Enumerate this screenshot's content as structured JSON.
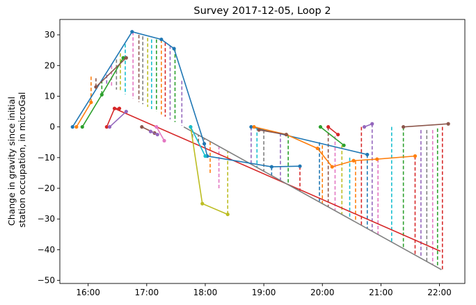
{
  "chart_data": {
    "type": "line",
    "title": "Survey 2017-12-05, Loop 2",
    "xlabel": "",
    "ylabel": [
      "Change in gravity since initial",
      "station occupation, in microGal"
    ],
    "x_unit": "time of day",
    "xlim": [
      "15:31",
      "22:26"
    ],
    "ylim": [
      -51,
      35
    ],
    "x_ticks": [
      "16:00",
      "17:00",
      "18:00",
      "19:00",
      "20:00",
      "21:00",
      "22:00"
    ],
    "y_ticks": [
      30,
      20,
      10,
      0,
      -10,
      -20,
      -30,
      -40,
      -50
    ],
    "y_tick_labels": [
      "30",
      "20",
      "10",
      "0",
      "−10",
      "−20",
      "−30",
      "−40",
      "−50"
    ],
    "grid": false,
    "legend": false,
    "colors": [
      "#1f77b4",
      "#ff7f0e",
      "#2ca02c",
      "#d62728",
      "#9467bd",
      "#8c564b",
      "#e377c2",
      "#7f7f7f",
      "#bcbd22",
      "#17becf"
    ],
    "drift_lines": [
      {
        "color": "#d62728",
        "points": [
          [
            "16:27",
            6
          ],
          [
            "22:01",
            -40.5
          ]
        ]
      },
      {
        "color": "#7f7f7f",
        "points": [
          [
            "17:38",
            0
          ],
          [
            "22:02",
            -46.5
          ]
        ]
      }
    ],
    "station_series": [
      {
        "color": "#1f77b4",
        "points": [
          [
            "15:44",
            0
          ],
          [
            "16:45",
            31
          ],
          [
            "17:15",
            28.5
          ],
          [
            "17:28",
            25.5
          ],
          [
            "17:59",
            -5.5
          ],
          [
            "18:02",
            -9.5
          ],
          [
            "19:08",
            -13
          ],
          [
            "19:37",
            -12.8
          ]
        ]
      },
      {
        "color": "#ff7f0e",
        "points": [
          [
            "15:48",
            0
          ],
          [
            "16:03",
            8
          ]
        ]
      },
      {
        "color": "#2ca02c",
        "points": [
          [
            "15:54",
            0
          ],
          [
            "16:14",
            10.5
          ],
          [
            "16:36",
            22.5
          ]
        ]
      },
      {
        "color": "#8c564b",
        "points": [
          [
            "16:08",
            13
          ],
          [
            "16:39",
            22.5
          ]
        ]
      },
      {
        "color": "#d62728",
        "points": [
          [
            "16:19",
            0
          ],
          [
            "16:27",
            6
          ],
          [
            "16:32",
            6
          ]
        ]
      },
      {
        "color": "#9467bd",
        "points": [
          [
            "16:22",
            0
          ],
          [
            "16:39",
            5
          ]
        ]
      },
      {
        "color": "#8c564b",
        "points": [
          [
            "16:55",
            0
          ],
          [
            "17:08",
            -2
          ]
        ]
      },
      {
        "color": "#9467bd",
        "points": [
          [
            "17:04",
            -1.5
          ],
          [
            "17:11",
            -2.5
          ]
        ]
      },
      {
        "color": "#e377c2",
        "points": [
          [
            "17:10",
            0
          ],
          [
            "17:18",
            -4.5
          ]
        ]
      },
      {
        "color": "#bcbd22",
        "points": [
          [
            "17:45",
            0
          ],
          [
            "17:57",
            -25
          ],
          [
            "18:23",
            -28.5
          ]
        ]
      },
      {
        "color": "#17becf",
        "points": [
          [
            "17:45",
            0
          ],
          [
            "18:00",
            -9.5
          ]
        ]
      },
      {
        "color": "#1f77b4",
        "points": [
          [
            "18:47",
            0
          ],
          [
            "20:46",
            -9
          ]
        ]
      },
      {
        "color": "#ff7f0e",
        "points": [
          [
            "18:50",
            0
          ],
          [
            "19:23",
            -2.5
          ],
          [
            "19:55",
            -7
          ],
          [
            "20:10",
            -13
          ],
          [
            "20:32",
            -11
          ],
          [
            "20:56",
            -10.5
          ],
          [
            "21:35",
            -9.5
          ]
        ]
      },
      {
        "color": "#8c564b",
        "points": [
          [
            "18:55",
            -1
          ],
          [
            "19:23",
            -2.5
          ]
        ]
      },
      {
        "color": "#2ca02c",
        "points": [
          [
            "19:58",
            0
          ],
          [
            "20:22",
            -6
          ]
        ]
      },
      {
        "color": "#d62728",
        "points": [
          [
            "20:06",
            0
          ],
          [
            "20:16",
            -2.5
          ]
        ]
      },
      {
        "color": "#9467bd",
        "points": [
          [
            "20:43",
            0
          ],
          [
            "20:51",
            1
          ]
        ]
      },
      {
        "color": "#8c564b",
        "points": [
          [
            "21:23",
            0
          ],
          [
            "22:09",
            1
          ]
        ]
      }
    ],
    "dashed_offsets": [
      {
        "x": "16:03",
        "y": 8,
        "color": "#ff7f0e"
      },
      {
        "x": "16:08",
        "y": 13,
        "color": "#8c564b"
      },
      {
        "x": "16:14",
        "y": 10.5,
        "color": "#2ca02c"
      },
      {
        "x": "16:19",
        "y": 17,
        "color": "#9467bd"
      },
      {
        "x": "16:24",
        "y": 20,
        "color": "#e377c2"
      },
      {
        "x": "16:29",
        "y": 22,
        "color": "#7f7f7f"
      },
      {
        "x": "16:33",
        "y": 24,
        "color": "#bcbd22"
      },
      {
        "x": "16:38",
        "y": 27,
        "color": "#17becf"
      },
      {
        "x": "16:46",
        "y": 31,
        "color": "#e377c2"
      },
      {
        "x": "16:52",
        "y": 30,
        "color": "#8c564b"
      },
      {
        "x": "16:56",
        "y": 29.5,
        "color": "#7f7f7f"
      },
      {
        "x": "17:01",
        "y": 29,
        "color": "#bcbd22"
      },
      {
        "x": "17:05",
        "y": 28.5,
        "color": "#17becf"
      },
      {
        "x": "17:10",
        "y": 28.5,
        "color": "#2ca02c"
      },
      {
        "x": "17:15",
        "y": 28.5,
        "color": "#ff7f0e"
      },
      {
        "x": "17:19",
        "y": 27.5,
        "color": "#d62728"
      },
      {
        "x": "17:24",
        "y": 26.5,
        "color": "#9467bd"
      },
      {
        "x": "17:29",
        "y": 25.5,
        "color": "#2ca02c"
      },
      {
        "x": "17:36",
        "y": 15,
        "color": "#9467bd"
      },
      {
        "x": "17:47",
        "y": -3.5,
        "color": "#7f7f7f"
      },
      {
        "x": "17:53",
        "y": -5,
        "color": "#8c564b"
      },
      {
        "x": "17:59",
        "y": -6,
        "color": "#8c564b"
      },
      {
        "x": "18:05",
        "y": -15,
        "color": "#ff7f0e"
      },
      {
        "x": "18:14",
        "y": -20,
        "color": "#e377c2"
      },
      {
        "x": "18:23",
        "y": -28.5,
        "color": "#bcbd22"
      },
      {
        "x": "18:47",
        "y": 0,
        "color": "#9467bd"
      },
      {
        "x": "18:53",
        "y": 0,
        "color": "#17becf"
      },
      {
        "x": "19:00",
        "y": -1,
        "color": "#7f7f7f"
      },
      {
        "x": "19:08",
        "y": -13,
        "color": "#1f77b4"
      },
      {
        "x": "19:17",
        "y": -2,
        "color": "#9467bd"
      },
      {
        "x": "19:25",
        "y": -2.5,
        "color": "#2ca02c"
      },
      {
        "x": "19:37",
        "y": -12.8,
        "color": "#d62728"
      },
      {
        "x": "19:57",
        "y": -5,
        "color": "#1f77b4"
      },
      {
        "x": "20:00",
        "y": -6,
        "color": "#ff7f0e"
      },
      {
        "x": "20:06",
        "y": 0,
        "color": "#8c564b"
      },
      {
        "x": "20:13",
        "y": -3,
        "color": "#e377c2"
      },
      {
        "x": "20:20",
        "y": -6,
        "color": "#bcbd22"
      },
      {
        "x": "20:28",
        "y": -10,
        "color": "#17becf"
      },
      {
        "x": "20:34",
        "y": -11,
        "color": "#ff7f0e"
      },
      {
        "x": "20:40",
        "y": 0,
        "color": "#d62728"
      },
      {
        "x": "20:46",
        "y": -9,
        "color": "#1f77b4"
      },
      {
        "x": "20:51",
        "y": 1,
        "color": "#9467bd"
      },
      {
        "x": "20:57",
        "y": -10.5,
        "color": "#e377c2"
      },
      {
        "x": "21:11",
        "y": 0,
        "color": "#17becf"
      },
      {
        "x": "21:23",
        "y": 0,
        "color": "#2ca02c"
      },
      {
        "x": "21:35",
        "y": -9.5,
        "color": "#d62728"
      },
      {
        "x": "21:41",
        "y": -1,
        "color": "#9467bd"
      },
      {
        "x": "21:47",
        "y": -1,
        "color": "#7f7f7f"
      },
      {
        "x": "21:53",
        "y": -1,
        "color": "#e377c2"
      },
      {
        "x": "21:58",
        "y": -0.5,
        "color": "#2ca02c"
      },
      {
        "x": "22:03",
        "y": 0,
        "color": "#d62728"
      }
    ]
  }
}
